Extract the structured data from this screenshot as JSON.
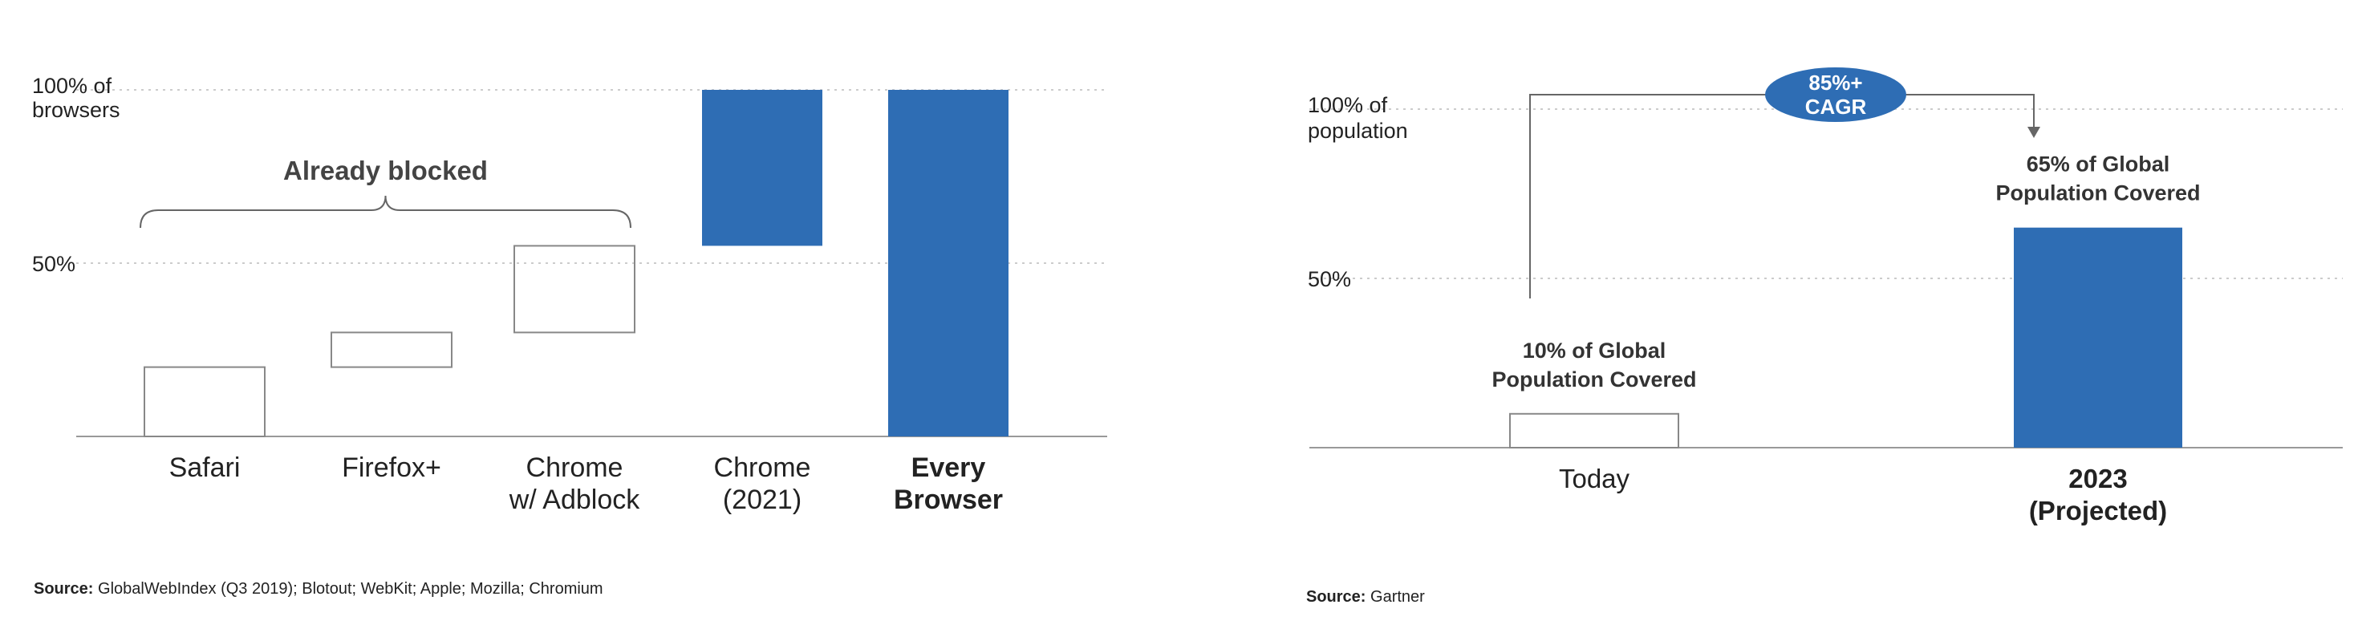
{
  "chart_data": [
    {
      "type": "bar",
      "variant": "floating-range",
      "categories": [
        "Safari",
        "Firefox+",
        "Chrome\nw/ Adblock",
        "Chrome\n(2021)",
        "Every\nBrowser"
      ],
      "ranges": [
        [
          0,
          20
        ],
        [
          20,
          30
        ],
        [
          30,
          55
        ],
        [
          55,
          100
        ],
        [
          0,
          100
        ]
      ],
      "styles": [
        "outline",
        "outline",
        "outline",
        "filled",
        "filled"
      ],
      "bold_categories": [
        false,
        false,
        false,
        false,
        true
      ],
      "y_ticks": [
        {
          "value": 50,
          "label": "50%"
        },
        {
          "value": 100,
          "label": "100% of\nbrowsers"
        }
      ],
      "ylim": [
        0,
        100
      ],
      "grid": "dotted",
      "annotation": {
        "text": "Already blocked",
        "spans_categories": [
          0,
          2
        ]
      },
      "source_label": "Source:",
      "source_text": " GlobalWebIndex (Q3 2019); Blotout; WebKit; Apple; Mozilla; Chromium"
    },
    {
      "type": "bar",
      "categories": [
        "Today",
        "2023\n(Projected)"
      ],
      "values": [
        10,
        65
      ],
      "styles": [
        "outline",
        "filled"
      ],
      "bold_categories": [
        false,
        true
      ],
      "data_labels": [
        "10% of Global\nPopulation Covered",
        "65% of Global\nPopulation Covered"
      ],
      "y_ticks": [
        {
          "value": 50,
          "label": "50%"
        },
        {
          "value": 100,
          "label": "100% of\npopulation"
        }
      ],
      "ylim": [
        0,
        100
      ],
      "grid": "dotted",
      "growth_annotation": {
        "text": "85%+\nCAGR",
        "from": 0,
        "to": 1
      },
      "source_label": "Source:",
      "source_text": " Gartner"
    }
  ],
  "colors": {
    "bar_fill": "#2e6db4",
    "outline": "#888888",
    "axis": "#999999",
    "grid": "#cccccc",
    "text": "#222222"
  }
}
